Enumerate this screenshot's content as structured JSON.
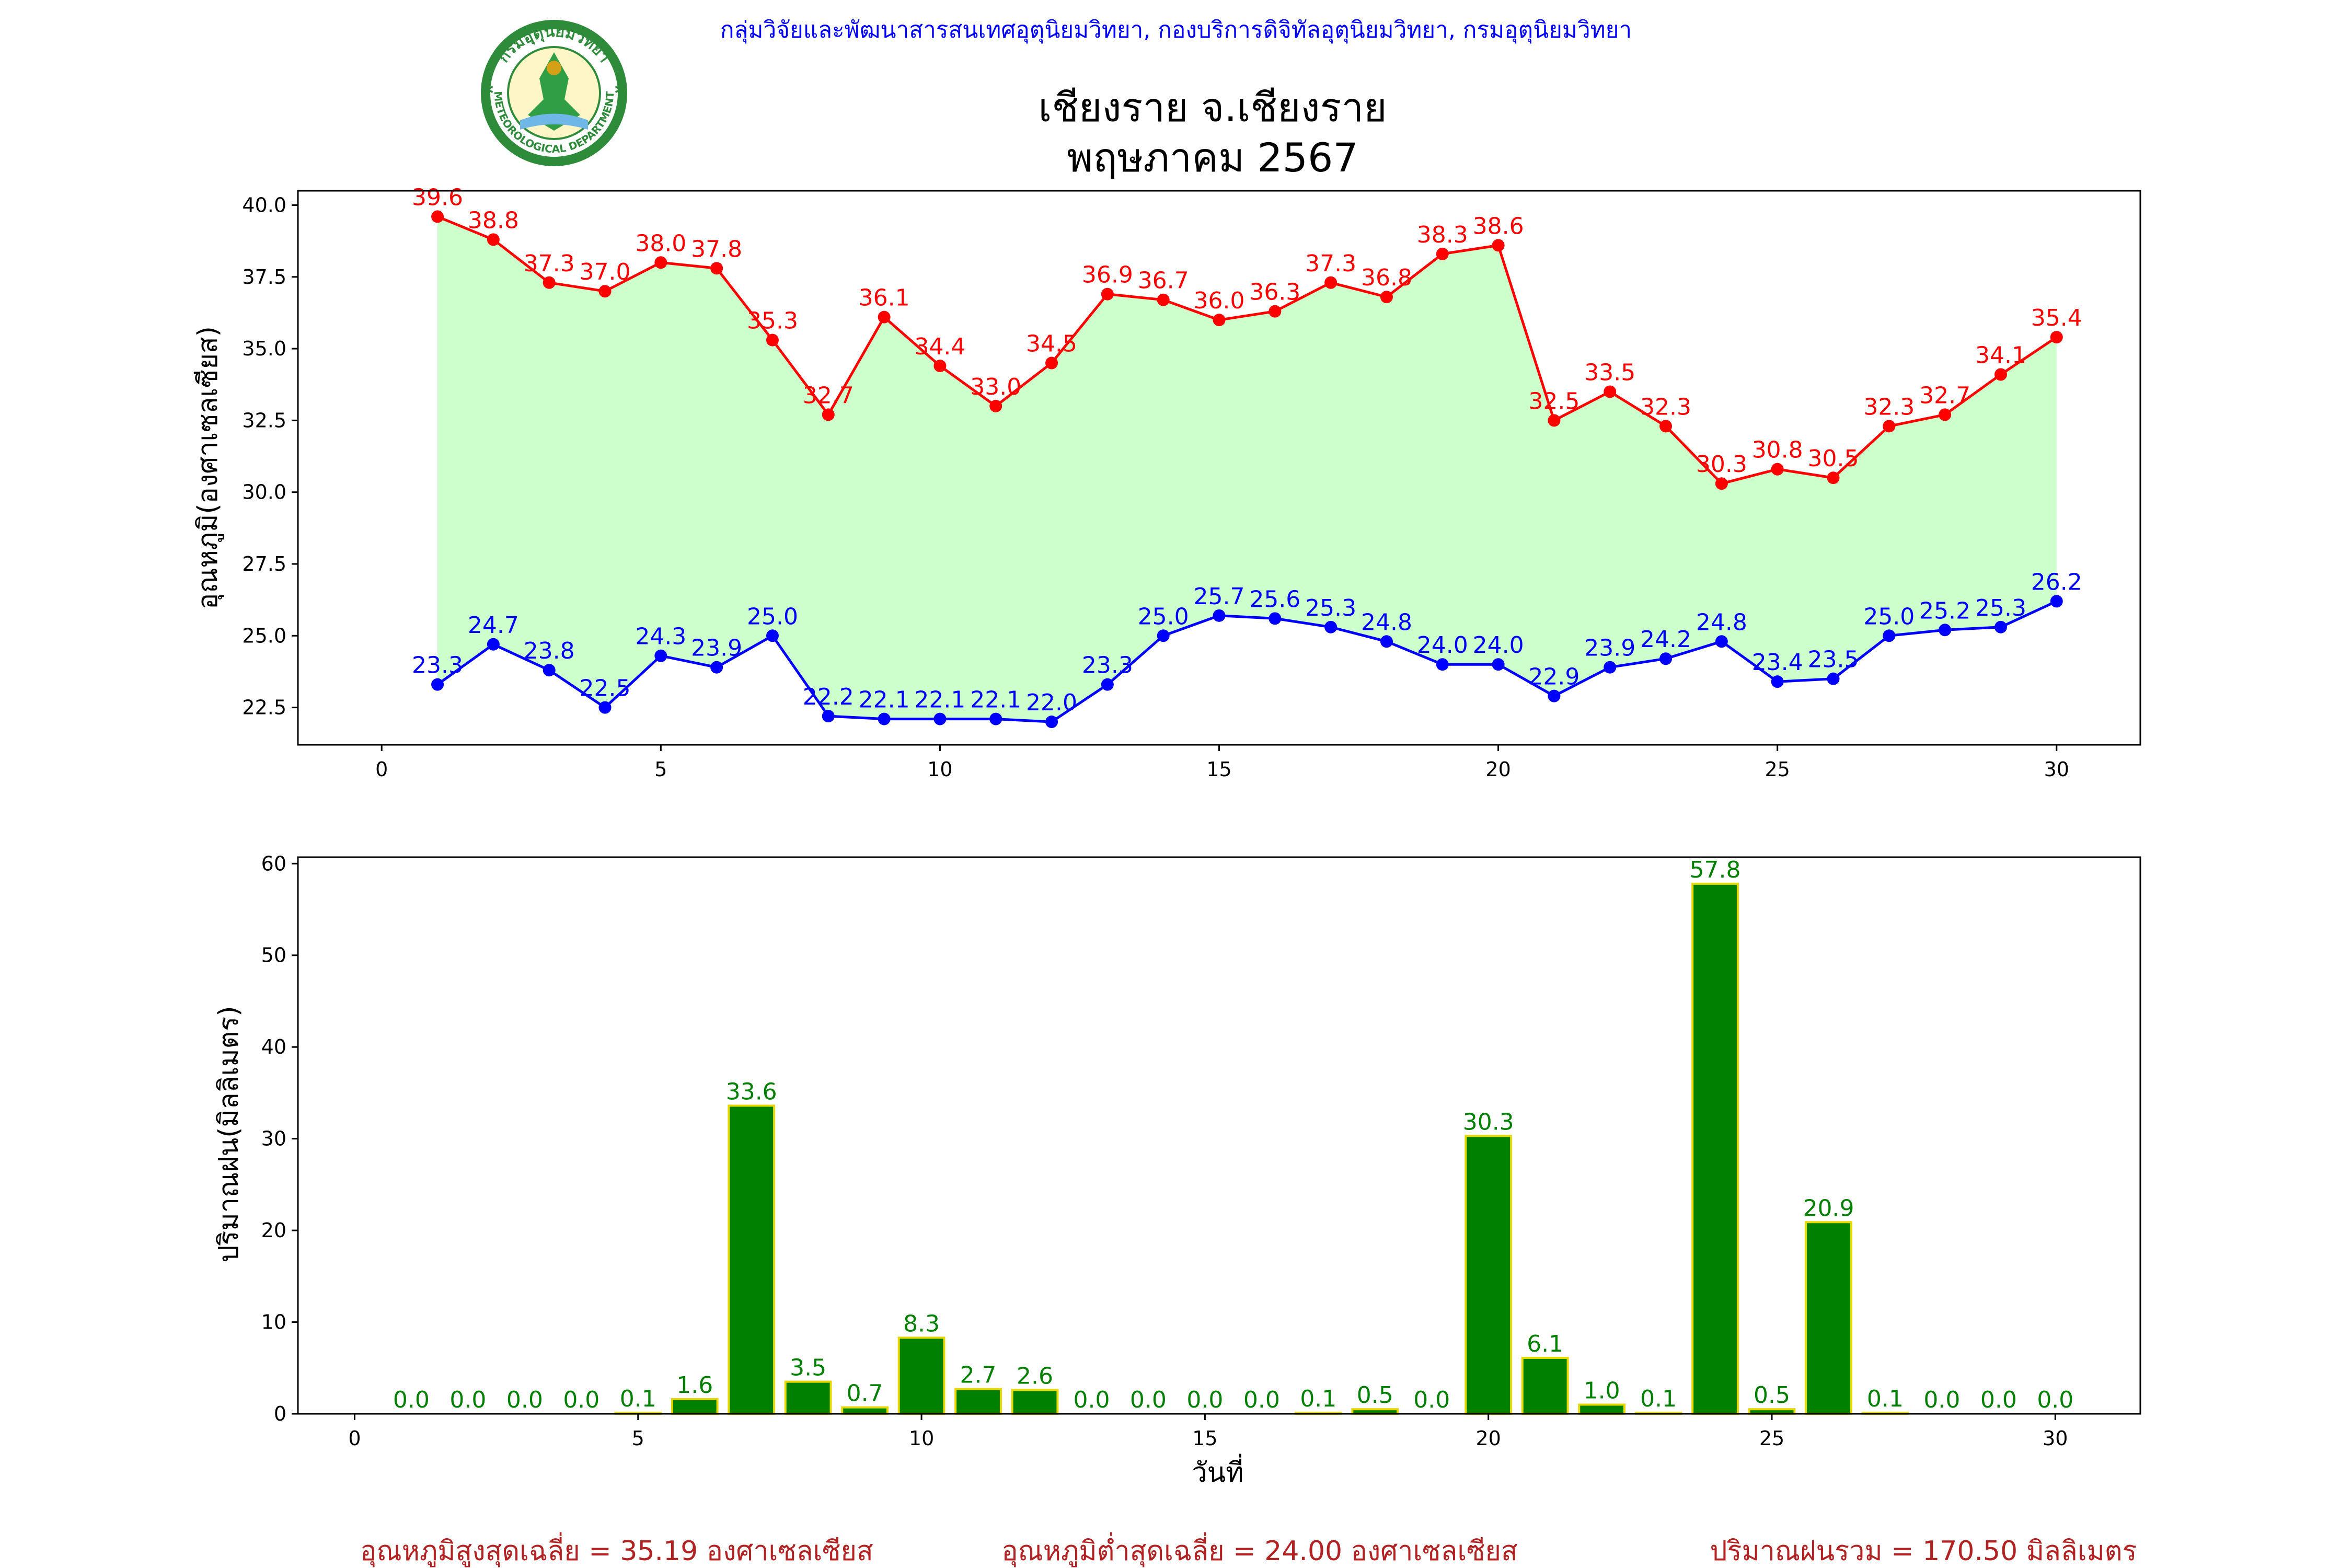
{
  "header": {
    "org_line": "กลุ่มวิจัยและพัฒนาสารสนเทศอุตุนิยมวิทยา, กองบริการดิจิทัลอุตุนิยมวิทยา, กรมอุตุนิยมวิทยา",
    "title_line1": "เชียงราย จ.เชียงราย",
    "title_line2": "พฤษภาคม 2567"
  },
  "logo": {
    "top_text": "กรมอุตุนิยมวิทยา",
    "bottom_text": "METEOROLOGICAL DEPARTMENT"
  },
  "footer": {
    "avg_max": "อุณหภูมิสูงสุดเฉลี่ย = 35.19 องศาเซลเซียส",
    "avg_min": "อุณหภูมิต่ำสุดเฉลี่ย = 24.00 องศาเซลเซียส",
    "total_rain": "ปริมาณฝนรวม = 170.50 มิลลิเมตร"
  },
  "colors": {
    "max_line": "#ff0000",
    "min_line": "#0000ff",
    "fill": "#ccffcc",
    "bar": "#008000",
    "bar_edge": "#e6d800",
    "bar_label": "#008000",
    "org_text": "#0000ff",
    "footer_text": "#b22222"
  },
  "chart_data": [
    {
      "type": "line",
      "ylabel": "อุณหภูมิ(องศาเซลเซียส)",
      "xlabel": "",
      "xlim": [
        -1.5,
        31.5
      ],
      "ylim": [
        21.2,
        40.5
      ],
      "xticks": [
        0,
        5,
        10,
        15,
        20,
        25,
        30
      ],
      "yticks": [
        22.5,
        25.0,
        27.5,
        30.0,
        32.5,
        35.0,
        37.5,
        40.0
      ],
      "x": [
        1,
        2,
        3,
        4,
        5,
        6,
        7,
        8,
        9,
        10,
        11,
        12,
        13,
        14,
        15,
        16,
        17,
        18,
        19,
        20,
        21,
        22,
        23,
        24,
        25,
        26,
        27,
        28,
        29,
        30
      ],
      "series": [
        {
          "values": [
            39.6,
            38.8,
            37.3,
            37.0,
            38.0,
            37.8,
            35.3,
            32.7,
            36.1,
            34.4,
            33.0,
            34.5,
            36.9,
            36.7,
            36.0,
            36.3,
            37.3,
            36.8,
            38.3,
            38.6,
            32.5,
            33.5,
            32.3,
            30.3,
            30.8,
            30.5,
            32.3,
            32.7,
            34.1,
            35.4
          ]
        },
        {
          "values": [
            23.3,
            24.7,
            23.8,
            22.5,
            24.3,
            23.9,
            25.0,
            22.2,
            22.1,
            22.1,
            22.1,
            22.0,
            23.3,
            25.0,
            25.7,
            25.6,
            25.3,
            24.8,
            24.0,
            24.0,
            22.9,
            23.9,
            24.2,
            24.8,
            23.4,
            23.5,
            25.0,
            25.2,
            25.3,
            26.2
          ]
        }
      ],
      "fill_between": true
    },
    {
      "type": "bar",
      "ylabel": "ปริมาณฝน(มิลลิเมตร)",
      "xlabel": "วันที่",
      "xlim": [
        -1,
        31.5
      ],
      "ylim": [
        0,
        60.7
      ],
      "xticks": [
        0,
        5,
        10,
        15,
        20,
        25,
        30
      ],
      "yticks": [
        0,
        10,
        20,
        30,
        40,
        50,
        60
      ],
      "x": [
        1,
        2,
        3,
        4,
        5,
        6,
        7,
        8,
        9,
        10,
        11,
        12,
        13,
        14,
        15,
        16,
        17,
        18,
        19,
        20,
        21,
        22,
        23,
        24,
        25,
        26,
        27,
        28,
        29,
        30
      ],
      "values": [
        0.0,
        0.0,
        0.0,
        0.0,
        0.1,
        1.6,
        33.6,
        3.5,
        0.7,
        8.3,
        2.7,
        2.6,
        0.0,
        0.0,
        0.0,
        0.0,
        0.1,
        0.5,
        0.0,
        30.3,
        6.1,
        1.0,
        0.1,
        57.8,
        0.5,
        20.9,
        0.1,
        0.0,
        0.0,
        0.0
      ]
    }
  ]
}
